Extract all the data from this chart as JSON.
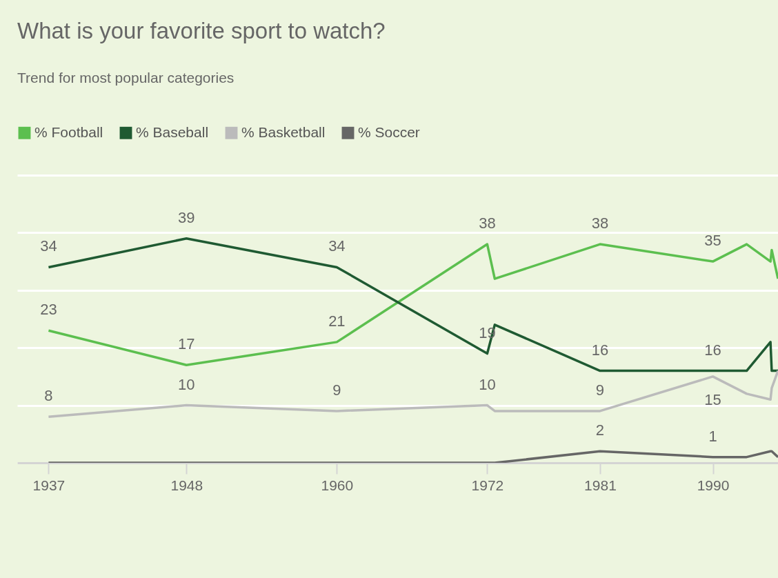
{
  "chart_data": {
    "type": "line",
    "title": "What is your favorite sport to watch?",
    "subtitle": "Trend for most popular categories",
    "x": [
      1937,
      1948,
      1960,
      1972,
      1972.6,
      1981,
      1990,
      1992.7,
      1994.6,
      1994.7,
      1995.2
    ],
    "series": [
      {
        "name": "% Football",
        "color": "#5cbf4f",
        "values": [
          23,
          17,
          21,
          38,
          32,
          38,
          35,
          38,
          35,
          37,
          32
        ],
        "value_labels": [
          "23",
          "17",
          "21",
          "38",
          null,
          "38",
          "35",
          null,
          null,
          null,
          null
        ]
      },
      {
        "name": "% Baseball",
        "color": "#1f5a32",
        "values": [
          34,
          39,
          34,
          19,
          24,
          16,
          16,
          16,
          21,
          16,
          16
        ],
        "value_labels": [
          "34",
          "39",
          "34",
          "19",
          null,
          "16",
          "16",
          null,
          null,
          null,
          null
        ]
      },
      {
        "name": "% Basketball",
        "color": "#bbbbbb",
        "values": [
          8,
          10,
          9,
          10,
          9,
          9,
          15,
          12,
          11,
          13,
          16
        ],
        "value_labels": [
          "8",
          "10",
          "9",
          "10",
          null,
          "9",
          "15",
          null,
          null,
          null,
          null
        ]
      },
      {
        "name": "% Soccer",
        "color": "#666666",
        "values": [
          0,
          0,
          0,
          0,
          0,
          2,
          1,
          1,
          2,
          2,
          1
        ],
        "value_labels": [
          null,
          null,
          null,
          null,
          null,
          "2",
          "1",
          null,
          null,
          null,
          null
        ]
      }
    ],
    "xlim": [
      1934.5,
      1995.2
    ],
    "xticks": [
      1937,
      1948,
      1960,
      1972,
      1981,
      1990
    ],
    "ylim": [
      0,
      50
    ],
    "yticks": [
      {
        "value": 0,
        "label": null
      },
      {
        "value": 10,
        "label": null
      },
      {
        "value": 20,
        "label": null
      },
      {
        "value": 30,
        "label": null
      },
      {
        "value": 40,
        "label": null
      },
      {
        "value": 50,
        "label": null
      }
    ],
    "tick_labels": "x",
    "grid": "y",
    "legend": "top left",
    "marker": "none",
    "line_style": "solid"
  }
}
